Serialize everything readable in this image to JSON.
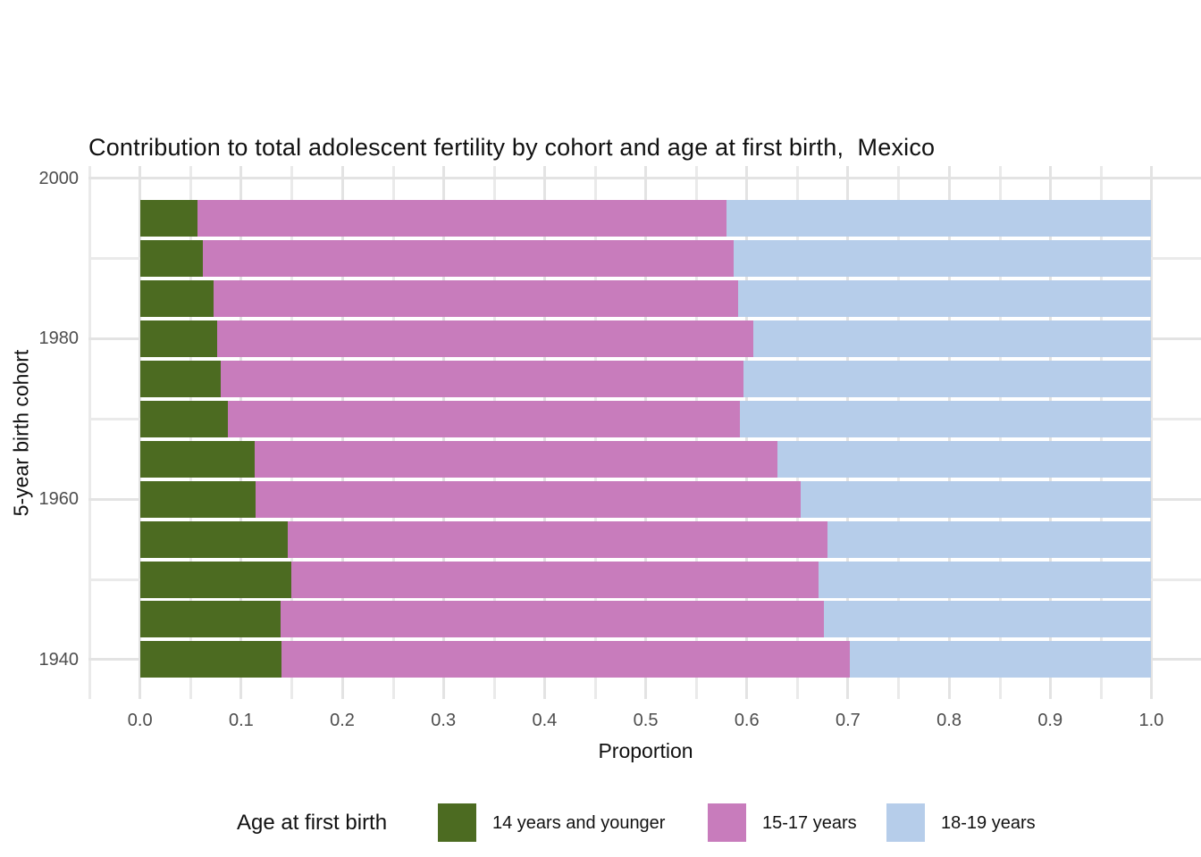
{
  "title": "Contribution to total adolescent fertility by cohort and age at first birth,  Mexico",
  "axes": {
    "xlabel": "Proportion",
    "ylabel": "5-year birth cohort",
    "x_tick_labels": [
      "0.0",
      "0.1",
      "0.2",
      "0.3",
      "0.4",
      "0.5",
      "0.6",
      "0.7",
      "0.8",
      "0.9",
      "1.0"
    ],
    "y_tick_labels": [
      "2000",
      "1980",
      "1960",
      "1940"
    ]
  },
  "legend": {
    "title": "Age at first birth",
    "items": [
      {
        "label": "14 years and younger",
        "color": "#4c6b21"
      },
      {
        "label": "15-17 years",
        "color": "#c87cbc"
      },
      {
        "label": "18-19 years",
        "color": "#b6cdea"
      }
    ]
  },
  "colors": {
    "green": "#4c6b21",
    "pink": "#c87cbc",
    "blue": "#b6cdea",
    "gridline": "#e3e3e3",
    "tick_text": "#4d4d4d",
    "background": "#ffffff"
  },
  "chart_data": {
    "type": "bar",
    "orientation": "horizontal",
    "stacked": true,
    "title": "Contribution to total adolescent fertility by cohort and age at first birth,  Mexico",
    "xlabel": "Proportion",
    "ylabel": "5-year birth cohort",
    "xlim": [
      0,
      1
    ],
    "x_major_ticks": [
      0,
      0.1,
      0.2,
      0.3,
      0.4,
      0.5,
      0.6,
      0.7,
      0.8,
      0.9,
      1.0
    ],
    "y_major_ticks": [
      2000,
      1980,
      1960,
      1940
    ],
    "y_minor_ticks": [
      1990,
      1970,
      1950
    ],
    "grid": true,
    "legend_title": "Age at first birth",
    "legend_position": "bottom",
    "categories_top_to_bottom": [
      1995,
      1990,
      1985,
      1980,
      1975,
      1970,
      1965,
      1960,
      1955,
      1950,
      1945,
      1940
    ],
    "series": [
      {
        "name": "14 years and younger",
        "color": "#4c6b21",
        "values": [
          0.057,
          0.062,
          0.073,
          0.076,
          0.08,
          0.087,
          0.113,
          0.114,
          0.146,
          0.15,
          0.139,
          0.14
        ]
      },
      {
        "name": "15-17 years",
        "color": "#c87cbc",
        "values": [
          0.523,
          0.525,
          0.518,
          0.53,
          0.517,
          0.506,
          0.517,
          0.539,
          0.534,
          0.521,
          0.537,
          0.562
        ]
      },
      {
        "name": "18-19 years",
        "color": "#b6cdea",
        "values": [
          0.42,
          0.413,
          0.409,
          0.394,
          0.403,
          0.407,
          0.37,
          0.347,
          0.32,
          0.329,
          0.324,
          0.298
        ]
      }
    ]
  }
}
